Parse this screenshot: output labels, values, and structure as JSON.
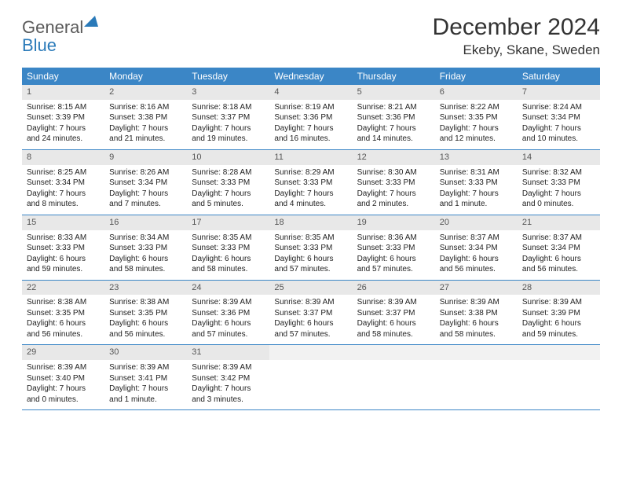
{
  "logo": {
    "text_general": "General",
    "text_blue": "Blue",
    "triangle_color": "#2a7ab9"
  },
  "header": {
    "month_title": "December 2024",
    "location": "Ekeby, Skane, Sweden"
  },
  "colors": {
    "header_bar": "#3b86c6",
    "header_bar_text": "#ffffff",
    "daynum_bg": "#e8e8e8",
    "row_border": "#3b86c6",
    "body_text": "#222222",
    "logo_gray": "#5a5a5a",
    "logo_blue": "#2a7ab9"
  },
  "weekdays": [
    "Sunday",
    "Monday",
    "Tuesday",
    "Wednesday",
    "Thursday",
    "Friday",
    "Saturday"
  ],
  "days": [
    {
      "num": "1",
      "sunrise": "Sunrise: 8:15 AM",
      "sunset": "Sunset: 3:39 PM",
      "daylight1": "Daylight: 7 hours",
      "daylight2": "and 24 minutes."
    },
    {
      "num": "2",
      "sunrise": "Sunrise: 8:16 AM",
      "sunset": "Sunset: 3:38 PM",
      "daylight1": "Daylight: 7 hours",
      "daylight2": "and 21 minutes."
    },
    {
      "num": "3",
      "sunrise": "Sunrise: 8:18 AM",
      "sunset": "Sunset: 3:37 PM",
      "daylight1": "Daylight: 7 hours",
      "daylight2": "and 19 minutes."
    },
    {
      "num": "4",
      "sunrise": "Sunrise: 8:19 AM",
      "sunset": "Sunset: 3:36 PM",
      "daylight1": "Daylight: 7 hours",
      "daylight2": "and 16 minutes."
    },
    {
      "num": "5",
      "sunrise": "Sunrise: 8:21 AM",
      "sunset": "Sunset: 3:36 PM",
      "daylight1": "Daylight: 7 hours",
      "daylight2": "and 14 minutes."
    },
    {
      "num": "6",
      "sunrise": "Sunrise: 8:22 AM",
      "sunset": "Sunset: 3:35 PM",
      "daylight1": "Daylight: 7 hours",
      "daylight2": "and 12 minutes."
    },
    {
      "num": "7",
      "sunrise": "Sunrise: 8:24 AM",
      "sunset": "Sunset: 3:34 PM",
      "daylight1": "Daylight: 7 hours",
      "daylight2": "and 10 minutes."
    },
    {
      "num": "8",
      "sunrise": "Sunrise: 8:25 AM",
      "sunset": "Sunset: 3:34 PM",
      "daylight1": "Daylight: 7 hours",
      "daylight2": "and 8 minutes."
    },
    {
      "num": "9",
      "sunrise": "Sunrise: 8:26 AM",
      "sunset": "Sunset: 3:34 PM",
      "daylight1": "Daylight: 7 hours",
      "daylight2": "and 7 minutes."
    },
    {
      "num": "10",
      "sunrise": "Sunrise: 8:28 AM",
      "sunset": "Sunset: 3:33 PM",
      "daylight1": "Daylight: 7 hours",
      "daylight2": "and 5 minutes."
    },
    {
      "num": "11",
      "sunrise": "Sunrise: 8:29 AM",
      "sunset": "Sunset: 3:33 PM",
      "daylight1": "Daylight: 7 hours",
      "daylight2": "and 4 minutes."
    },
    {
      "num": "12",
      "sunrise": "Sunrise: 8:30 AM",
      "sunset": "Sunset: 3:33 PM",
      "daylight1": "Daylight: 7 hours",
      "daylight2": "and 2 minutes."
    },
    {
      "num": "13",
      "sunrise": "Sunrise: 8:31 AM",
      "sunset": "Sunset: 3:33 PM",
      "daylight1": "Daylight: 7 hours",
      "daylight2": "and 1 minute."
    },
    {
      "num": "14",
      "sunrise": "Sunrise: 8:32 AM",
      "sunset": "Sunset: 3:33 PM",
      "daylight1": "Daylight: 7 hours",
      "daylight2": "and 0 minutes."
    },
    {
      "num": "15",
      "sunrise": "Sunrise: 8:33 AM",
      "sunset": "Sunset: 3:33 PM",
      "daylight1": "Daylight: 6 hours",
      "daylight2": "and 59 minutes."
    },
    {
      "num": "16",
      "sunrise": "Sunrise: 8:34 AM",
      "sunset": "Sunset: 3:33 PM",
      "daylight1": "Daylight: 6 hours",
      "daylight2": "and 58 minutes."
    },
    {
      "num": "17",
      "sunrise": "Sunrise: 8:35 AM",
      "sunset": "Sunset: 3:33 PM",
      "daylight1": "Daylight: 6 hours",
      "daylight2": "and 58 minutes."
    },
    {
      "num": "18",
      "sunrise": "Sunrise: 8:35 AM",
      "sunset": "Sunset: 3:33 PM",
      "daylight1": "Daylight: 6 hours",
      "daylight2": "and 57 minutes."
    },
    {
      "num": "19",
      "sunrise": "Sunrise: 8:36 AM",
      "sunset": "Sunset: 3:33 PM",
      "daylight1": "Daylight: 6 hours",
      "daylight2": "and 57 minutes."
    },
    {
      "num": "20",
      "sunrise": "Sunrise: 8:37 AM",
      "sunset": "Sunset: 3:34 PM",
      "daylight1": "Daylight: 6 hours",
      "daylight2": "and 56 minutes."
    },
    {
      "num": "21",
      "sunrise": "Sunrise: 8:37 AM",
      "sunset": "Sunset: 3:34 PM",
      "daylight1": "Daylight: 6 hours",
      "daylight2": "and 56 minutes."
    },
    {
      "num": "22",
      "sunrise": "Sunrise: 8:38 AM",
      "sunset": "Sunset: 3:35 PM",
      "daylight1": "Daylight: 6 hours",
      "daylight2": "and 56 minutes."
    },
    {
      "num": "23",
      "sunrise": "Sunrise: 8:38 AM",
      "sunset": "Sunset: 3:35 PM",
      "daylight1": "Daylight: 6 hours",
      "daylight2": "and 56 minutes."
    },
    {
      "num": "24",
      "sunrise": "Sunrise: 8:39 AM",
      "sunset": "Sunset: 3:36 PM",
      "daylight1": "Daylight: 6 hours",
      "daylight2": "and 57 minutes."
    },
    {
      "num": "25",
      "sunrise": "Sunrise: 8:39 AM",
      "sunset": "Sunset: 3:37 PM",
      "daylight1": "Daylight: 6 hours",
      "daylight2": "and 57 minutes."
    },
    {
      "num": "26",
      "sunrise": "Sunrise: 8:39 AM",
      "sunset": "Sunset: 3:37 PM",
      "daylight1": "Daylight: 6 hours",
      "daylight2": "and 58 minutes."
    },
    {
      "num": "27",
      "sunrise": "Sunrise: 8:39 AM",
      "sunset": "Sunset: 3:38 PM",
      "daylight1": "Daylight: 6 hours",
      "daylight2": "and 58 minutes."
    },
    {
      "num": "28",
      "sunrise": "Sunrise: 8:39 AM",
      "sunset": "Sunset: 3:39 PM",
      "daylight1": "Daylight: 6 hours",
      "daylight2": "and 59 minutes."
    },
    {
      "num": "29",
      "sunrise": "Sunrise: 8:39 AM",
      "sunset": "Sunset: 3:40 PM",
      "daylight1": "Daylight: 7 hours",
      "daylight2": "and 0 minutes."
    },
    {
      "num": "30",
      "sunrise": "Sunrise: 8:39 AM",
      "sunset": "Sunset: 3:41 PM",
      "daylight1": "Daylight: 7 hours",
      "daylight2": "and 1 minute."
    },
    {
      "num": "31",
      "sunrise": "Sunrise: 8:39 AM",
      "sunset": "Sunset: 3:42 PM",
      "daylight1": "Daylight: 7 hours",
      "daylight2": "and 3 minutes."
    }
  ],
  "layout": {
    "first_weekday_index": 0,
    "total_cells": 35
  }
}
